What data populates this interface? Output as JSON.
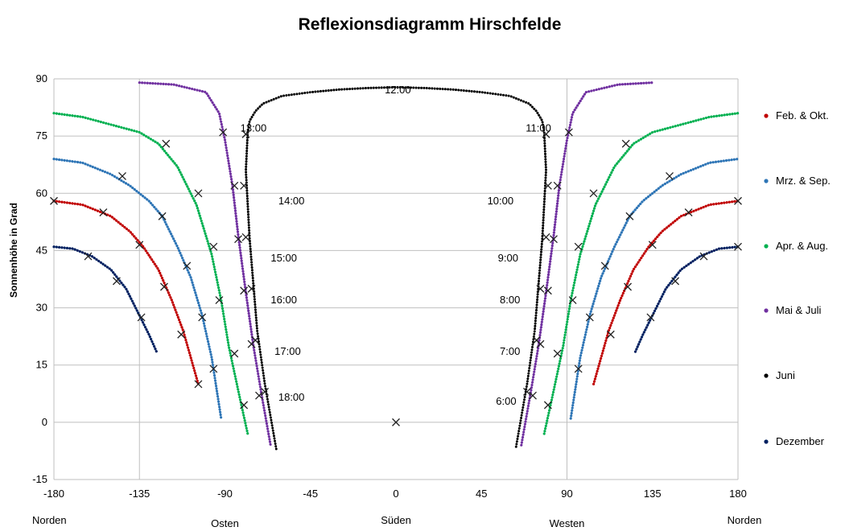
{
  "chart_data": {
    "type": "scatter",
    "title": "Reflexionsdiagramm Hirschfelde",
    "ylabel": "Sonnenhöhe in Grad",
    "xlim": [
      -180,
      180
    ],
    "ylim": [
      -15,
      90
    ],
    "x_ticks": [
      -180,
      -135,
      -90,
      -45,
      0,
      45,
      90,
      135,
      180
    ],
    "y_ticks": [
      -15,
      0,
      15,
      30,
      45,
      60,
      75,
      90
    ],
    "grid": "horizontal",
    "legend_position": "right",
    "direction_labels": [
      {
        "x": -180,
        "text": "Norden"
      },
      {
        "x": -90,
        "text": "Osten"
      },
      {
        "x": 0,
        "text": "Süden"
      },
      {
        "x": 90,
        "text": "Westen"
      },
      {
        "x": 180,
        "text": "Norden"
      }
    ],
    "hour_labels": [
      {
        "text": "12:00",
        "x": 1,
        "y": 87
      },
      {
        "text": "13:00",
        "x": -75,
        "y": 77
      },
      {
        "text": "11:00",
        "x": 75,
        "y": 77
      },
      {
        "text": "14:00",
        "x": -55,
        "y": 58
      },
      {
        "text": "10:00",
        "x": 55,
        "y": 58
      },
      {
        "text": "15:00",
        "x": -59,
        "y": 43
      },
      {
        "text": "9:00",
        "x": 59,
        "y": 43
      },
      {
        "text": "16:00",
        "x": -59,
        "y": 32
      },
      {
        "text": "8:00",
        "x": 60,
        "y": 32
      },
      {
        "text": "17:00",
        "x": -57,
        "y": 18.5
      },
      {
        "text": "7:00",
        "x": 60,
        "y": 18.5
      },
      {
        "text": "18:00",
        "x": -55,
        "y": 6.5
      },
      {
        "text": "6:00",
        "x": 58,
        "y": 5.5
      }
    ],
    "series": [
      {
        "name": "Feb. & Okt.",
        "color": "#c00000",
        "curves": [
          [
            [
              -180,
              58
            ],
            [
              -165,
              57
            ],
            [
              -150,
              54
            ],
            [
              -140,
              50
            ],
            [
              -133,
              46
            ],
            [
              -125,
              40
            ],
            [
              -118,
              32
            ],
            [
              -112,
              24
            ],
            [
              -108,
              17
            ],
            [
              -104,
              10
            ]
          ],
          [
            [
              104,
              10
            ],
            [
              108,
              17
            ],
            [
              112,
              24
            ],
            [
              118,
              32
            ],
            [
              125,
              40
            ],
            [
              133,
              46
            ],
            [
              140,
              50
            ],
            [
              150,
              54
            ],
            [
              165,
              57
            ],
            [
              180,
              58
            ]
          ]
        ],
        "markers": [
          [
            -180,
            58
          ],
          [
            -154,
            55
          ],
          [
            -135,
            46.5
          ],
          [
            -122,
            35.5
          ],
          [
            -113,
            23
          ],
          [
            -104,
            10
          ],
          [
            180,
            58
          ],
          [
            154,
            55
          ],
          [
            135,
            46.5
          ],
          [
            122,
            35.5
          ],
          [
            113,
            23
          ]
        ]
      },
      {
        "name": "Mrz. & Sep.",
        "color": "#2e75b6",
        "curves": [
          [
            [
              -180,
              69
            ],
            [
              -165,
              68
            ],
            [
              -150,
              65
            ],
            [
              -140,
              62
            ],
            [
              -130,
              58
            ],
            [
              -123,
              54
            ],
            [
              -115,
              46
            ],
            [
              -108,
              38
            ],
            [
              -102,
              28
            ],
            [
              -97,
              17
            ],
            [
              -92,
              1
            ]
          ],
          [
            [
              92,
              1
            ],
            [
              97,
              17
            ],
            [
              102,
              28
            ],
            [
              108,
              38
            ],
            [
              115,
              46
            ],
            [
              123,
              54
            ],
            [
              130,
              58
            ],
            [
              140,
              62
            ],
            [
              150,
              65
            ],
            [
              165,
              68
            ],
            [
              180,
              69
            ]
          ]
        ],
        "markers": [
          [
            -144,
            64.5
          ],
          [
            -123,
            54
          ],
          [
            -110,
            41
          ],
          [
            -102,
            27.5
          ],
          [
            -96,
            14
          ],
          [
            144,
            64.5
          ],
          [
            123,
            54
          ],
          [
            110,
            41
          ],
          [
            102,
            27.5
          ],
          [
            96,
            14
          ]
        ]
      },
      {
        "name": "Apr. & Aug.",
        "color": "#00b050",
        "curves": [
          [
            [
              -180,
              81
            ],
            [
              -165,
              80
            ],
            [
              -150,
              78
            ],
            [
              -135,
              76
            ],
            [
              -125,
              73
            ],
            [
              -115,
              67
            ],
            [
              -105,
              57
            ],
            [
              -97,
              44
            ],
            [
              -92,
              32
            ],
            [
              -88,
              20
            ],
            [
              -82,
              6
            ],
            [
              -78,
              -3
            ]
          ],
          [
            [
              78,
              -3
            ],
            [
              82,
              6
            ],
            [
              88,
              20
            ],
            [
              92,
              32
            ],
            [
              97,
              44
            ],
            [
              105,
              57
            ],
            [
              115,
              67
            ],
            [
              125,
              73
            ],
            [
              135,
              76
            ],
            [
              150,
              78
            ],
            [
              165,
              80
            ],
            [
              180,
              81
            ]
          ]
        ],
        "markers": [
          [
            -121,
            73
          ],
          [
            -104,
            60
          ],
          [
            -96,
            46
          ],
          [
            -93,
            32
          ],
          [
            -85,
            18
          ],
          [
            -80,
            4.5
          ],
          [
            121,
            73
          ],
          [
            104,
            60
          ],
          [
            96,
            46
          ],
          [
            93,
            32
          ],
          [
            85,
            18
          ],
          [
            80,
            4.5
          ]
        ]
      },
      {
        "name": "Mai & Juli",
        "color": "#7030a0",
        "curves": [
          [
            [
              -135,
              89
            ],
            [
              -117,
              88.5
            ],
            [
              -100,
              86.5
            ],
            [
              -93,
              81
            ],
            [
              -90,
              74
            ],
            [
              -86,
              62
            ],
            [
              -83,
              49
            ],
            [
              -79,
              34
            ],
            [
              -75,
              20
            ],
            [
              -71,
              8
            ],
            [
              -66,
              -6
            ]
          ],
          [
            [
              66,
              -6
            ],
            [
              71,
              8
            ],
            [
              75,
              20
            ],
            [
              79,
              34
            ],
            [
              83,
              49
            ],
            [
              86,
              62
            ],
            [
              90,
              74
            ],
            [
              93,
              81
            ],
            [
              100,
              86.5
            ],
            [
              117,
              88.5
            ],
            [
              135,
              89
            ]
          ]
        ],
        "markers": [
          [
            -91,
            76
          ],
          [
            -85,
            62
          ],
          [
            -83,
            48
          ],
          [
            -80,
            34.5
          ],
          [
            -76,
            20.5
          ],
          [
            -72,
            7
          ],
          [
            91,
            76
          ],
          [
            85,
            62
          ],
          [
            83,
            48
          ],
          [
            80,
            34.5
          ],
          [
            76,
            20.5
          ],
          [
            72,
            7
          ]
        ]
      },
      {
        "name": "Juni",
        "color": "#000000",
        "curves": [
          [
            [
              -78,
              76
            ],
            [
              -77,
              79
            ],
            [
              -74,
              81.5
            ],
            [
              -70,
              83.5
            ],
            [
              -60,
              85.5
            ],
            [
              -45,
              86.5
            ],
            [
              -30,
              87.2
            ],
            [
              -15,
              87.6
            ],
            [
              0,
              87.8
            ],
            [
              15,
              87.6
            ],
            [
              30,
              87.2
            ],
            [
              45,
              86.5
            ],
            [
              60,
              85.5
            ],
            [
              70,
              83.5
            ],
            [
              74,
              81.5
            ],
            [
              77,
              79
            ],
            [
              78,
              76
            ],
            [
              79,
              66
            ],
            [
              77,
              48
            ],
            [
              75,
              36
            ],
            [
              73,
              24
            ],
            [
              69,
              10
            ],
            [
              63,
              -7
            ]
          ],
          [
            [
              -78,
              76
            ],
            [
              -79,
              66
            ],
            [
              -77,
              48
            ],
            [
              -75,
              36
            ],
            [
              -73,
              24
            ],
            [
              -69,
              10
            ],
            [
              -63,
              -7
            ]
          ]
        ],
        "markers": [
          [
            -79,
            75.5
          ],
          [
            -80,
            62
          ],
          [
            -79,
            48.5
          ],
          [
            -76,
            35
          ],
          [
            -74,
            21.5
          ],
          [
            -69,
            8
          ],
          [
            0,
            0
          ],
          [
            79,
            75.5
          ],
          [
            80,
            62
          ],
          [
            79,
            48.5
          ],
          [
            76,
            35
          ],
          [
            74,
            21.5
          ],
          [
            69,
            8
          ]
        ]
      },
      {
        "name": "Dezember",
        "color": "#002060",
        "curves": [
          [
            [
              -180,
              46
            ],
            [
              -170,
              45.5
            ],
            [
              -160,
              43.5
            ],
            [
              -150,
              40
            ],
            [
              -142,
              35
            ],
            [
              -136,
              29
            ],
            [
              -130,
              23
            ],
            [
              -126,
              18.5
            ]
          ],
          [
            [
              126,
              18.5
            ],
            [
              130,
              23
            ],
            [
              136,
              29
            ],
            [
              142,
              35
            ],
            [
              150,
              40
            ],
            [
              160,
              43.5
            ],
            [
              170,
              45.5
            ],
            [
              180,
              46
            ]
          ]
        ],
        "markers": [
          [
            -162,
            43.5
          ],
          [
            -147,
            37
          ],
          [
            -134,
            27.5
          ],
          [
            180,
            46
          ],
          [
            162,
            43.5
          ],
          [
            147,
            37
          ],
          [
            134,
            27.5
          ]
        ]
      }
    ]
  }
}
